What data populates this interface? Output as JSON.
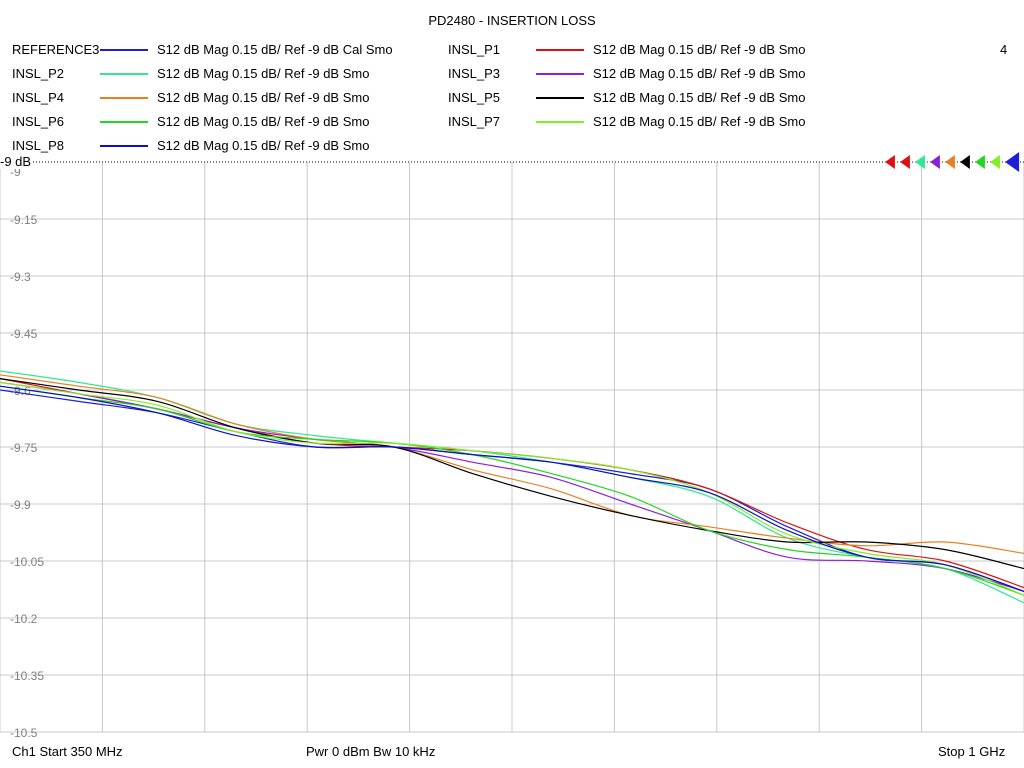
{
  "title": "PD2480 - INSERTION LOSS",
  "channel_number": "4",
  "ref_marker_label": "-9 dB",
  "footer": {
    "start": "Ch1  Start  350 MHz",
    "power_bw": "Pwr  0 dBm  Bw  10 kHz",
    "stop": "Stop  1 GHz"
  },
  "legend": [
    {
      "name": "REFERENCE3",
      "desc": "S12  dB Mag  0.15 dB/ Ref -9 dB  Cal Smo",
      "color": "#1e1ed8"
    },
    {
      "name": "INSL_P1",
      "desc": "S12  dB Mag  0.15 dB/ Ref -9 dB  Smo",
      "color": "#e01010"
    },
    {
      "name": "INSL_P2",
      "desc": "S12  dB Mag  0.15 dB/ Ref -9 dB  Smo",
      "color": "#30e890"
    },
    {
      "name": "INSL_P3",
      "desc": "S12  dB Mag  0.15 dB/ Ref -9 dB  Smo",
      "color": "#8a20d8"
    },
    {
      "name": "INSL_P4",
      "desc": "S12  dB Mag  0.15 dB/ Ref -9 dB  Smo",
      "color": "#e88020"
    },
    {
      "name": "INSL_P5",
      "desc": "S12  dB Mag  0.15 dB/ Ref -9 dB  Smo",
      "color": "#000000"
    },
    {
      "name": "INSL_P6",
      "desc": "S12  dB Mag  0.15 dB/ Ref -9 dB  Smo",
      "color": "#20d820"
    },
    {
      "name": "INSL_P7",
      "desc": "S12  dB Mag  0.15 dB/ Ref -9 dB  Smo",
      "color": "#80f020"
    },
    {
      "name": "INSL_P8",
      "desc": "S12  dB Mag  0.15 dB/ Ref -9 dB  Smo",
      "color": "#1010c0"
    }
  ],
  "chart_data": {
    "type": "line",
    "title": "PD2480 - INSERTION LOSS",
    "xlabel": "",
    "ylabel": "",
    "x_unit": "MHz",
    "xlim": [
      350,
      1000
    ],
    "ylim": [
      -10.5,
      -9.0
    ],
    "ytick_values": [
      -9,
      -9.15,
      -9.3,
      -9.45,
      -9.6,
      -9.75,
      -9.9,
      -10.05,
      -10.2,
      -10.35,
      -10.5
    ],
    "yticks": [
      "-9",
      "-9.15",
      "-9.3",
      "-9.45",
      "-9.6",
      "-9.75",
      "-9.9",
      "-10.05",
      "-10.2",
      "-10.35",
      "-10.5"
    ],
    "grid": true,
    "x": [
      350,
      400,
      450,
      500,
      550,
      600,
      650,
      700,
      750,
      800,
      850,
      900,
      950,
      1000
    ],
    "series": [
      {
        "name": "REFERENCE3",
        "color": "#1e1ed8",
        "values": [
          -9.6,
          -9.63,
          -9.66,
          -9.71,
          -9.75,
          -9.75,
          -9.77,
          -9.79,
          -9.82,
          -9.86,
          -9.96,
          -10.04,
          -10.06,
          -10.13
        ]
      },
      {
        "name": "INSL_P1",
        "color": "#e01010",
        "values": [
          -9.57,
          -9.61,
          -9.65,
          -9.7,
          -9.74,
          -9.75,
          -9.76,
          -9.78,
          -9.81,
          -9.86,
          -9.95,
          -10.02,
          -10.05,
          -10.12
        ]
      },
      {
        "name": "INSL_P2",
        "color": "#30e890",
        "values": [
          -9.55,
          -9.58,
          -9.62,
          -9.69,
          -9.72,
          -9.74,
          -9.76,
          -9.79,
          -9.83,
          -9.88,
          -9.99,
          -10.04,
          -10.07,
          -10.16
        ]
      },
      {
        "name": "INSL_P3",
        "color": "#8a20d8",
        "values": [
          -9.58,
          -9.61,
          -9.65,
          -9.7,
          -9.73,
          -9.75,
          -9.79,
          -9.83,
          -9.9,
          -9.97,
          -10.04,
          -10.05,
          -10.07,
          -10.13
        ]
      },
      {
        "name": "INSL_P4",
        "color": "#e88020",
        "values": [
          -9.56,
          -9.59,
          -9.62,
          -9.69,
          -9.73,
          -9.75,
          -9.81,
          -9.86,
          -9.93,
          -9.96,
          -9.99,
          -10.01,
          -10.0,
          -10.03
        ]
      },
      {
        "name": "INSL_P5",
        "color": "#000000",
        "values": [
          -9.57,
          -9.6,
          -9.63,
          -9.7,
          -9.74,
          -9.75,
          -9.82,
          -9.88,
          -9.93,
          -9.97,
          -10.0,
          -10.0,
          -10.02,
          -10.07
        ]
      },
      {
        "name": "INSL_P6",
        "color": "#20d820",
        "values": [
          -9.59,
          -9.62,
          -9.65,
          -9.71,
          -9.73,
          -9.74,
          -9.77,
          -9.82,
          -9.88,
          -9.97,
          -10.02,
          -10.04,
          -10.07,
          -10.14
        ]
      },
      {
        "name": "INSL_P7",
        "color": "#80f020",
        "values": [
          -9.58,
          -9.61,
          -9.64,
          -9.71,
          -9.74,
          -9.74,
          -9.76,
          -9.78,
          -9.81,
          -9.87,
          -9.98,
          -10.03,
          -10.06,
          -10.14
        ]
      },
      {
        "name": "INSL_P8",
        "color": "#1010c0",
        "values": [
          -9.59,
          -9.62,
          -9.66,
          -9.72,
          -9.75,
          -9.75,
          -9.77,
          -9.79,
          -9.83,
          -9.87,
          -9.97,
          -10.04,
          -10.06,
          -10.13
        ]
      }
    ]
  }
}
